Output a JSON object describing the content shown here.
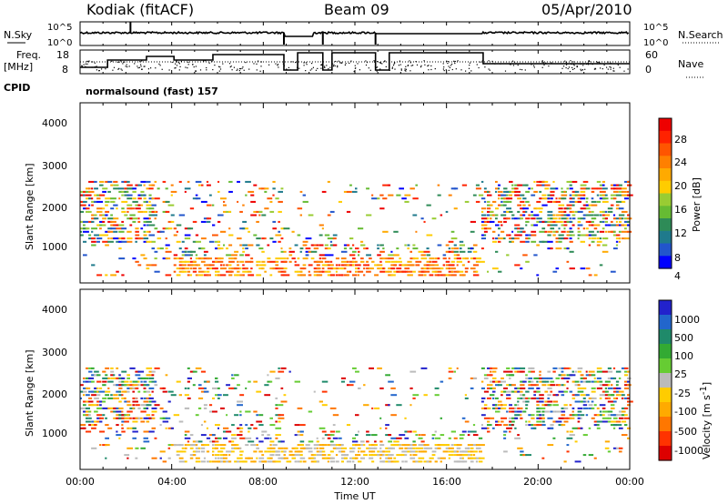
{
  "header": {
    "station": "Kodiak (fitACF)",
    "beam": "Beam 09",
    "date": "05/Apr/2010"
  },
  "panels": {
    "nsky_label": "N.Sky",
    "nsearch_label": "N.Search",
    "noise_ticks": [
      "10^5",
      "10^0"
    ],
    "freq_label": "Freq.",
    "freq_unit": "[MHz]",
    "freq_ticks": [
      "18",
      "8"
    ],
    "nave_label": "Nave",
    "nave_ticks": [
      "60",
      "0"
    ],
    "cpid_label": "CPID",
    "cpid_text": "normalsound (fast) 157"
  },
  "xaxis": {
    "title": "Time UT",
    "ticks": [
      "00:00",
      "04:00",
      "08:00",
      "12:00",
      "16:00",
      "20:00",
      "00:00"
    ]
  },
  "colorbars": {
    "power": {
      "title": "Power [dB]",
      "ticks": [
        "4",
        "8",
        "12",
        "16",
        "20",
        "24",
        "28"
      ],
      "colors": [
        "#0000ff",
        "#2255cc",
        "#1f7a8c",
        "#2e8b57",
        "#66bb33",
        "#99cc33",
        "#ffcc00",
        "#ffaa00",
        "#ff8000",
        "#ff5500",
        "#ff2200",
        "#ee0000"
      ]
    },
    "velocity": {
      "title": "Velocity [m s",
      "title_exp": "-1",
      "title_end": "]",
      "ticks": [
        "1000",
        "500",
        "100",
        "25",
        "-25",
        "-100",
        "-500",
        "-1000"
      ],
      "colors": [
        "#2222cc",
        "#2266cc",
        "#1f8a6a",
        "#33aa33",
        "#66cc33",
        "#bbbbbb",
        "#ffcc00",
        "#ffaa00",
        "#ff7700",
        "#ff3300",
        "#dd0000"
      ]
    }
  },
  "chart_data": [
    {
      "type": "heatmap",
      "title": "Power",
      "xlabel": "Time UT",
      "ylabel": "Slant Range [km]",
      "xlim": [
        0,
        24
      ],
      "ylim": [
        0,
        4600
      ],
      "yticks": [
        "1000",
        "2000",
        "3000",
        "4000"
      ],
      "colorbar": "Power [dB]",
      "clim": [
        0,
        30
      ],
      "note": "fitACF range-time backscatter; dense echoes 0-3 h and 17.5-24 h at 1000-2300 km, ground scatter 300-900 km around 5-17 h"
    },
    {
      "type": "heatmap",
      "title": "Velocity",
      "xlabel": "Time UT",
      "ylabel": "Slant Range [km]",
      "xlim": [
        0,
        24
      ],
      "ylim": [
        0,
        4600
      ],
      "yticks": [
        "1000",
        "2000",
        "3000",
        "4000"
      ],
      "colorbar": "Velocity [m s-1]",
      "clim": [
        -1000,
        1000
      ]
    }
  ]
}
